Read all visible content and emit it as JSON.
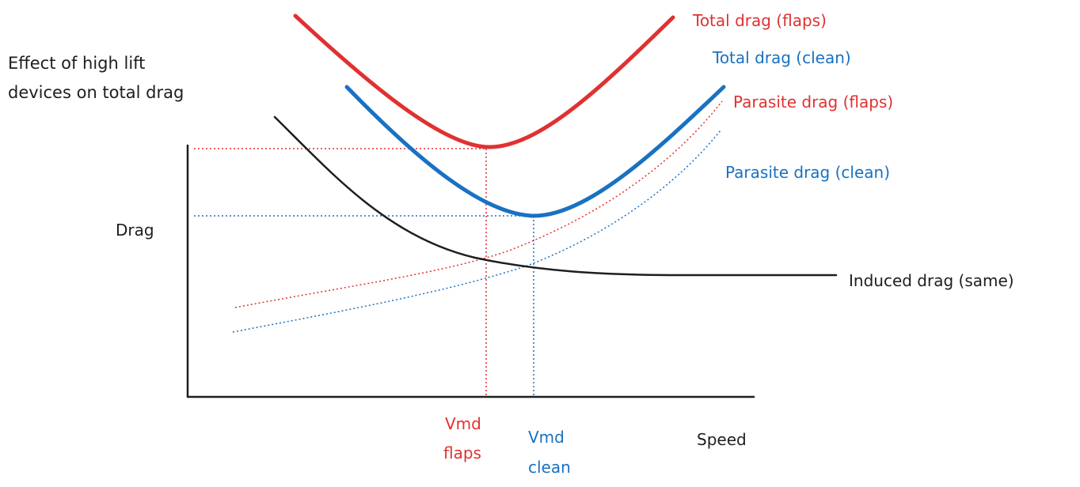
{
  "title": {
    "line1": "Effect of high lift",
    "line2": "devices on total drag"
  },
  "axes": {
    "y_label": "Drag",
    "x_label": "Speed"
  },
  "curves": {
    "total_flaps": "Total drag (flaps)",
    "total_clean": "Total drag (clean)",
    "parasite_flaps": "Parasite drag (flaps)",
    "parasite_clean": "Parasite drag (clean)",
    "induced": "Induced drag (same)"
  },
  "markers": {
    "vmd_flaps_line1": "Vmd",
    "vmd_flaps_line2": "flaps",
    "vmd_clean_line1": "Vmd",
    "vmd_clean_line2": "clean"
  },
  "colors": {
    "flaps": "#e03131",
    "clean": "#1971c2",
    "induced": "#1e1e1e",
    "axis": "#1e1e1e"
  }
}
